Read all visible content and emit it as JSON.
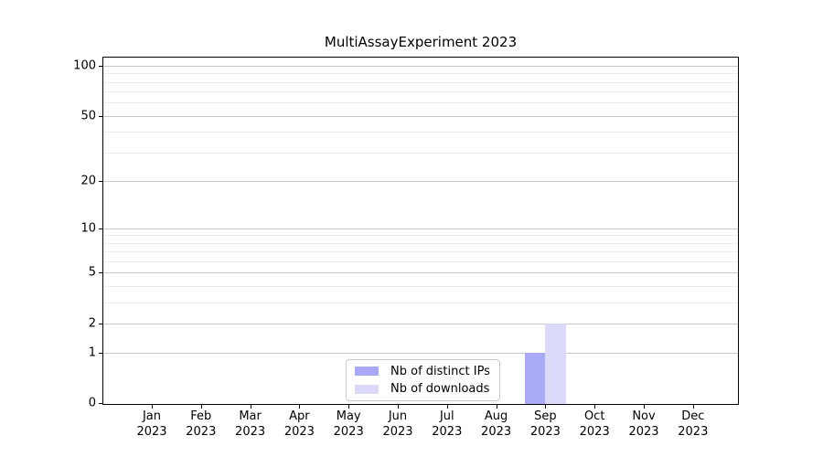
{
  "chart_data": {
    "type": "bar",
    "title": "MultiAssayExperiment 2023",
    "categories": [
      "Jan",
      "Feb",
      "Mar",
      "Apr",
      "May",
      "Jun",
      "Jul",
      "Aug",
      "Sep",
      "Oct",
      "Nov",
      "Dec"
    ],
    "category_year": "2023",
    "series": [
      {
        "name": "Nb of distinct IPs",
        "color": "#a9a9f8",
        "values": [
          0,
          0,
          0,
          0,
          0,
          0,
          0,
          0,
          1,
          0,
          0,
          0
        ]
      },
      {
        "name": "Nb of downloads",
        "color": "#dadaf8",
        "values": [
          0,
          0,
          0,
          0,
          0,
          0,
          0,
          0,
          2,
          0,
          0,
          0
        ]
      }
    ],
    "y_axis": {
      "scale": "log1p",
      "ymin": 0,
      "ymax": 112,
      "major_ticks": [
        0,
        1,
        2,
        5,
        10,
        20,
        50,
        100
      ],
      "minor_gridlines": [
        3,
        4,
        6,
        7,
        8,
        9,
        30,
        40,
        60,
        70,
        80,
        90
      ]
    },
    "x_axis": {
      "tick_label_lines": 2
    },
    "grid": "horizontal",
    "legend": {
      "position": "bottom-center",
      "labels": [
        "Nb of distinct IPs",
        "Nb of downloads"
      ]
    },
    "colors": {
      "major_grid": "#c8c8c8",
      "minor_grid": "#ebebeb",
      "axis": "#000000",
      "background": "#ffffff",
      "legend_border": "#c8c8c8",
      "text": "#000000"
    }
  }
}
